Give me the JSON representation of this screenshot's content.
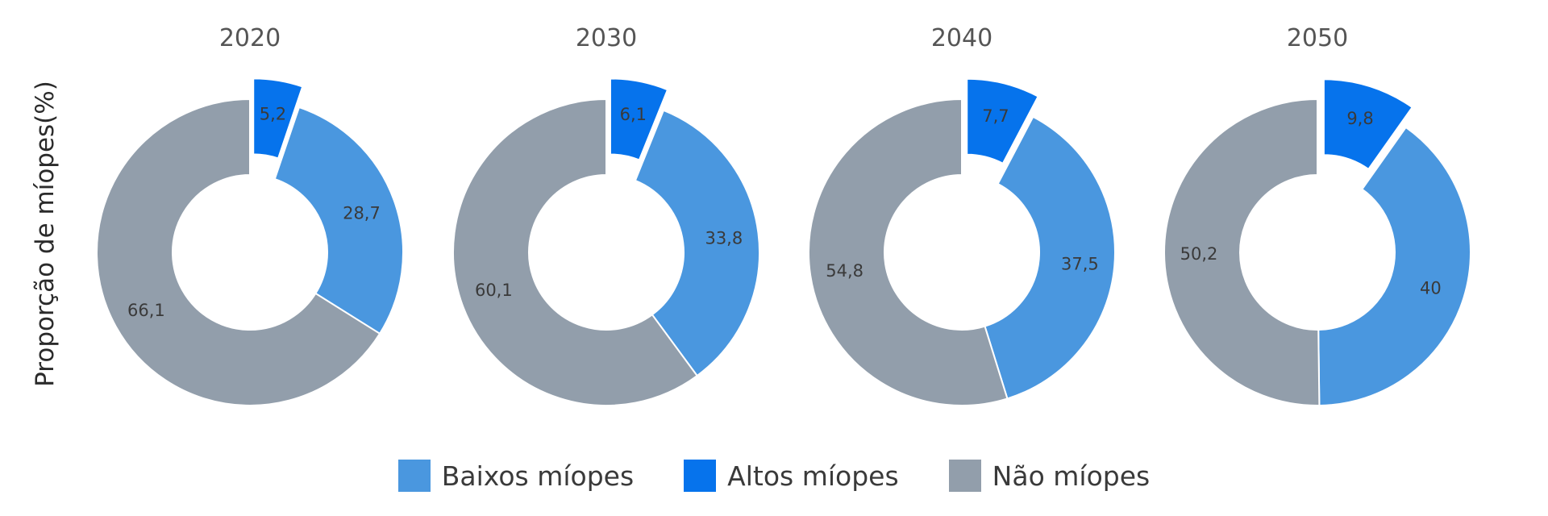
{
  "chart_data": {
    "type": "pie",
    "ylabel": "Proporção de míopes(%)",
    "series_meta": [
      {
        "key": "baixos",
        "name": "Baixos míopes",
        "color": "#4a97df"
      },
      {
        "key": "altos",
        "name": "Altos míopes",
        "color": "#0673ec"
      },
      {
        "key": "nao",
        "name": "Não míopes",
        "color": "#929eab"
      }
    ],
    "charts": [
      {
        "title": "2020",
        "values": {
          "altos": 5.2,
          "baixos": 28.7,
          "nao": 66.1
        },
        "labels": {
          "altos": "5,2",
          "baixos": "28,7",
          "nao": "66,1"
        }
      },
      {
        "title": "2030",
        "values": {
          "altos": 6.1,
          "baixos": 33.8,
          "nao": 60.1
        },
        "labels": {
          "altos": "6,1",
          "baixos": "33,8",
          "nao": "60,1"
        }
      },
      {
        "title": "2040",
        "values": {
          "altos": 7.7,
          "baixos": 37.5,
          "nao": 54.8
        },
        "labels": {
          "altos": "7,7",
          "baixos": "37,5",
          "nao": "54,8"
        }
      },
      {
        "title": "2050",
        "values": {
          "altos": 9.8,
          "baixos": 40,
          "nao": 50.2
        },
        "labels": {
          "altos": "9,8",
          "baixos": "40",
          "nao": "50,2"
        }
      }
    ]
  },
  "legend": {
    "items": [
      {
        "label": "Baixos míopes",
        "color": "#4a97df"
      },
      {
        "label": "Altos míopes",
        "color": "#0673ec"
      },
      {
        "label": "Não míopes",
        "color": "#929eab"
      }
    ]
  }
}
